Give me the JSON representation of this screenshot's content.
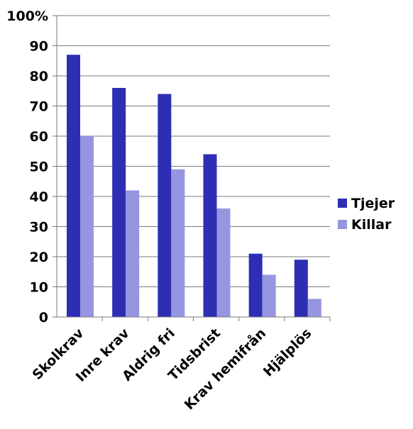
{
  "chart_data": {
    "type": "bar",
    "title": "",
    "xlabel": "",
    "ylabel": "",
    "ylim": [
      0,
      100
    ],
    "yticks": [
      "0",
      "10",
      "20",
      "30",
      "40",
      "50",
      "60",
      "70",
      "80",
      "90",
      "100%"
    ],
    "categories": [
      "Skolkrav",
      "Inre krav",
      "Aldrig fri",
      "Tidsbrist",
      "Krav hemifrån",
      "Hjälplös"
    ],
    "series": [
      {
        "name": "Tjejer",
        "color": "#2e2eb4",
        "values": [
          87,
          76,
          74,
          54,
          21,
          19
        ]
      },
      {
        "name": "Killar",
        "color": "#9696e0",
        "values": [
          60,
          42,
          49,
          36,
          14,
          6
        ]
      }
    ],
    "grid": true,
    "legend_position": "right"
  }
}
